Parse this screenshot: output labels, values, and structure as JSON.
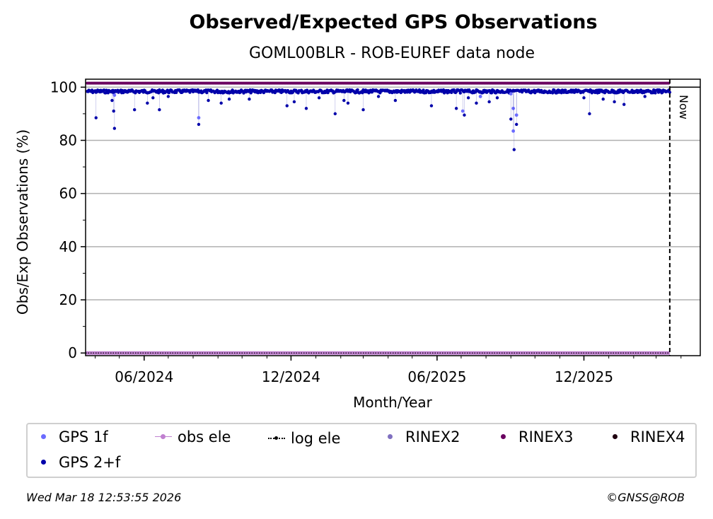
{
  "title": "Observed/Expected GPS Observations",
  "subtitle": "GOML00BLR - ROB-EUREF data node",
  "footer": {
    "timestamp": "Wed Mar 18 12:53:55 2026",
    "copyright": "©GNSS@ROB"
  },
  "colors": {
    "gps_1f": "#6b6bff",
    "gps_2f": "#0000aa",
    "obs_ele": "#c080d0",
    "log_ele": "#000000",
    "rinex2": "#8070c0",
    "rinex3": "#6a0060",
    "rinex4": "#200010",
    "grid": "#b0b0b0"
  },
  "legend": [
    {
      "label": "GPS 1f",
      "marker": "dot",
      "color": "#6b6bff"
    },
    {
      "label": "obs ele",
      "marker": "line-dot",
      "color": "#c080d0"
    },
    {
      "label": "log ele",
      "marker": "dotted-line",
      "color": "#000000"
    },
    {
      "label": "RINEX2",
      "marker": "dot",
      "color": "#8070c0"
    },
    {
      "label": "RINEX3",
      "marker": "dot",
      "color": "#6a0060"
    },
    {
      "label": "RINEX4",
      "marker": "dot",
      "color": "#200010"
    },
    {
      "label": "GPS 2+f",
      "marker": "dot",
      "color": "#0000aa"
    }
  ],
  "chart_data": {
    "type": "scatter",
    "title": "Observed/Expected GPS Observations",
    "subtitle": "GOML00BLR - ROB-EUREF data node",
    "xlabel": "Month/Year",
    "ylabel": "Obs/Exp Observations (%)",
    "xlim": [
      "2024-03-20",
      "2026-04-25"
    ],
    "ylim": [
      -1,
      103
    ],
    "yticks": [
      0,
      20,
      40,
      60,
      80,
      100
    ],
    "xticks": [
      {
        "date": "2024-06-01",
        "label": "06/2024"
      },
      {
        "date": "2024-12-01",
        "label": "12/2024"
      },
      {
        "date": "2025-06-01",
        "label": "06/2025"
      },
      {
        "date": "2025-12-01",
        "label": "12/2025"
      }
    ],
    "grid": "y",
    "now_marker": {
      "date": "2026-03-18",
      "label": "Now"
    },
    "baseline_value": 99,
    "rinex3_value": 101.5,
    "obs_ele_value": 0,
    "series": [
      {
        "name": "GPS 2+f",
        "note": "daily values, mostly ~98-99%; listed points are the visible dips",
        "points": [
          [
            "2024-04-02",
            88.5
          ],
          [
            "2024-04-22",
            95.0
          ],
          [
            "2024-04-24",
            91.0
          ],
          [
            "2024-04-25",
            84.5
          ],
          [
            "2024-05-20",
            91.5
          ],
          [
            "2024-06-05",
            94.0
          ],
          [
            "2024-06-12",
            96.0
          ],
          [
            "2024-06-20",
            91.5
          ],
          [
            "2024-07-01",
            96.5
          ],
          [
            "2024-08-08",
            86.0
          ],
          [
            "2024-08-20",
            95.0
          ],
          [
            "2024-09-05",
            94.0
          ],
          [
            "2024-09-15",
            95.5
          ],
          [
            "2024-10-10",
            95.5
          ],
          [
            "2024-11-26",
            93.0
          ],
          [
            "2024-12-05",
            94.5
          ],
          [
            "2024-12-20",
            92.0
          ],
          [
            "2025-01-05",
            96.0
          ],
          [
            "2025-01-25",
            90.0
          ],
          [
            "2025-02-05",
            95.0
          ],
          [
            "2025-02-10",
            94.0
          ],
          [
            "2025-03-01",
            91.5
          ],
          [
            "2025-03-20",
            96.5
          ],
          [
            "2025-04-10",
            95.0
          ],
          [
            "2025-05-25",
            93.0
          ],
          [
            "2025-06-25",
            92.0
          ],
          [
            "2025-07-05",
            89.5
          ],
          [
            "2025-07-10",
            96.0
          ],
          [
            "2025-07-20",
            94.0
          ],
          [
            "2025-08-05",
            94.5
          ],
          [
            "2025-08-15",
            96.0
          ],
          [
            "2025-09-01",
            88.0
          ],
          [
            "2025-09-05",
            76.5
          ],
          [
            "2025-09-08",
            86.0
          ],
          [
            "2025-12-01",
            96.0
          ],
          [
            "2025-12-08",
            90.0
          ],
          [
            "2025-12-25",
            95.5
          ],
          [
            "2026-01-08",
            94.5
          ],
          [
            "2026-01-20",
            93.5
          ],
          [
            "2026-02-15",
            96.5
          ]
        ]
      },
      {
        "name": "GPS 1f",
        "points": [
          [
            "2024-08-08",
            88.5
          ],
          [
            "2025-07-03",
            91.0
          ],
          [
            "2025-09-04",
            92.0
          ],
          [
            "2025-09-04",
            83.5
          ],
          [
            "2025-09-08",
            89.5
          ],
          [
            "2025-09-01",
            97.5
          ],
          [
            "2024-04-25",
            97.0
          ],
          [
            "2025-07-25",
            96.5
          ]
        ]
      },
      {
        "name": "obs ele",
        "values_note": "flat line at 0%",
        "value": 0
      },
      {
        "name": "RINEX3",
        "values_note": "continuous markers at top",
        "value": 101.5
      }
    ]
  }
}
